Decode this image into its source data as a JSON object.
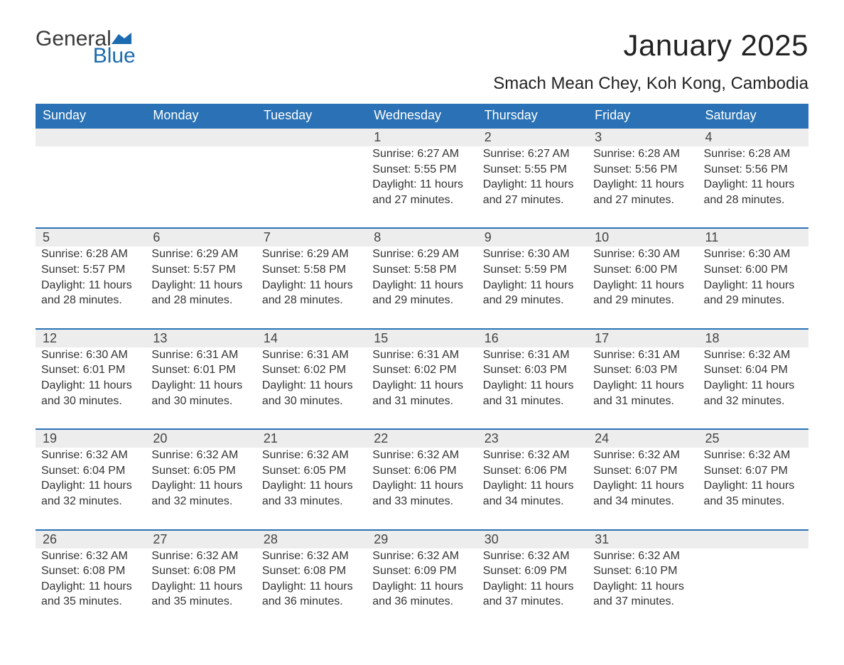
{
  "logo": {
    "word1": "General",
    "word2": "Blue",
    "flag_color": "#1c6bb0"
  },
  "title": "January 2025",
  "location": "Smach Mean Chey, Koh Kong, Cambodia",
  "colors": {
    "header_bg": "#2a72b5",
    "header_text": "#ffffff",
    "daynum_bg": "#ededed",
    "border_top": "#2a72b5",
    "body_text": "#333333",
    "page_bg": "#ffffff"
  },
  "fonts": {
    "title_size_pt": 32,
    "location_size_pt": 18,
    "header_size_pt": 14,
    "body_size_pt": 12
  },
  "day_headers": [
    "Sunday",
    "Monday",
    "Tuesday",
    "Wednesday",
    "Thursday",
    "Friday",
    "Saturday"
  ],
  "weeks": [
    [
      null,
      null,
      null,
      {
        "n": "1",
        "sunrise": "Sunrise: 6:27 AM",
        "sunset": "Sunset: 5:55 PM",
        "daylight": "Daylight: 11 hours and 27 minutes."
      },
      {
        "n": "2",
        "sunrise": "Sunrise: 6:27 AM",
        "sunset": "Sunset: 5:55 PM",
        "daylight": "Daylight: 11 hours and 27 minutes."
      },
      {
        "n": "3",
        "sunrise": "Sunrise: 6:28 AM",
        "sunset": "Sunset: 5:56 PM",
        "daylight": "Daylight: 11 hours and 27 minutes."
      },
      {
        "n": "4",
        "sunrise": "Sunrise: 6:28 AM",
        "sunset": "Sunset: 5:56 PM",
        "daylight": "Daylight: 11 hours and 28 minutes."
      }
    ],
    [
      {
        "n": "5",
        "sunrise": "Sunrise: 6:28 AM",
        "sunset": "Sunset: 5:57 PM",
        "daylight": "Daylight: 11 hours and 28 minutes."
      },
      {
        "n": "6",
        "sunrise": "Sunrise: 6:29 AM",
        "sunset": "Sunset: 5:57 PM",
        "daylight": "Daylight: 11 hours and 28 minutes."
      },
      {
        "n": "7",
        "sunrise": "Sunrise: 6:29 AM",
        "sunset": "Sunset: 5:58 PM",
        "daylight": "Daylight: 11 hours and 28 minutes."
      },
      {
        "n": "8",
        "sunrise": "Sunrise: 6:29 AM",
        "sunset": "Sunset: 5:58 PM",
        "daylight": "Daylight: 11 hours and 29 minutes."
      },
      {
        "n": "9",
        "sunrise": "Sunrise: 6:30 AM",
        "sunset": "Sunset: 5:59 PM",
        "daylight": "Daylight: 11 hours and 29 minutes."
      },
      {
        "n": "10",
        "sunrise": "Sunrise: 6:30 AM",
        "sunset": "Sunset: 6:00 PM",
        "daylight": "Daylight: 11 hours and 29 minutes."
      },
      {
        "n": "11",
        "sunrise": "Sunrise: 6:30 AM",
        "sunset": "Sunset: 6:00 PM",
        "daylight": "Daylight: 11 hours and 29 minutes."
      }
    ],
    [
      {
        "n": "12",
        "sunrise": "Sunrise: 6:30 AM",
        "sunset": "Sunset: 6:01 PM",
        "daylight": "Daylight: 11 hours and 30 minutes."
      },
      {
        "n": "13",
        "sunrise": "Sunrise: 6:31 AM",
        "sunset": "Sunset: 6:01 PM",
        "daylight": "Daylight: 11 hours and 30 minutes."
      },
      {
        "n": "14",
        "sunrise": "Sunrise: 6:31 AM",
        "sunset": "Sunset: 6:02 PM",
        "daylight": "Daylight: 11 hours and 30 minutes."
      },
      {
        "n": "15",
        "sunrise": "Sunrise: 6:31 AM",
        "sunset": "Sunset: 6:02 PM",
        "daylight": "Daylight: 11 hours and 31 minutes."
      },
      {
        "n": "16",
        "sunrise": "Sunrise: 6:31 AM",
        "sunset": "Sunset: 6:03 PM",
        "daylight": "Daylight: 11 hours and 31 minutes."
      },
      {
        "n": "17",
        "sunrise": "Sunrise: 6:31 AM",
        "sunset": "Sunset: 6:03 PM",
        "daylight": "Daylight: 11 hours and 31 minutes."
      },
      {
        "n": "18",
        "sunrise": "Sunrise: 6:32 AM",
        "sunset": "Sunset: 6:04 PM",
        "daylight": "Daylight: 11 hours and 32 minutes."
      }
    ],
    [
      {
        "n": "19",
        "sunrise": "Sunrise: 6:32 AM",
        "sunset": "Sunset: 6:04 PM",
        "daylight": "Daylight: 11 hours and 32 minutes."
      },
      {
        "n": "20",
        "sunrise": "Sunrise: 6:32 AM",
        "sunset": "Sunset: 6:05 PM",
        "daylight": "Daylight: 11 hours and 32 minutes."
      },
      {
        "n": "21",
        "sunrise": "Sunrise: 6:32 AM",
        "sunset": "Sunset: 6:05 PM",
        "daylight": "Daylight: 11 hours and 33 minutes."
      },
      {
        "n": "22",
        "sunrise": "Sunrise: 6:32 AM",
        "sunset": "Sunset: 6:06 PM",
        "daylight": "Daylight: 11 hours and 33 minutes."
      },
      {
        "n": "23",
        "sunrise": "Sunrise: 6:32 AM",
        "sunset": "Sunset: 6:06 PM",
        "daylight": "Daylight: 11 hours and 34 minutes."
      },
      {
        "n": "24",
        "sunrise": "Sunrise: 6:32 AM",
        "sunset": "Sunset: 6:07 PM",
        "daylight": "Daylight: 11 hours and 34 minutes."
      },
      {
        "n": "25",
        "sunrise": "Sunrise: 6:32 AM",
        "sunset": "Sunset: 6:07 PM",
        "daylight": "Daylight: 11 hours and 35 minutes."
      }
    ],
    [
      {
        "n": "26",
        "sunrise": "Sunrise: 6:32 AM",
        "sunset": "Sunset: 6:08 PM",
        "daylight": "Daylight: 11 hours and 35 minutes."
      },
      {
        "n": "27",
        "sunrise": "Sunrise: 6:32 AM",
        "sunset": "Sunset: 6:08 PM",
        "daylight": "Daylight: 11 hours and 35 minutes."
      },
      {
        "n": "28",
        "sunrise": "Sunrise: 6:32 AM",
        "sunset": "Sunset: 6:08 PM",
        "daylight": "Daylight: 11 hours and 36 minutes."
      },
      {
        "n": "29",
        "sunrise": "Sunrise: 6:32 AM",
        "sunset": "Sunset: 6:09 PM",
        "daylight": "Daylight: 11 hours and 36 minutes."
      },
      {
        "n": "30",
        "sunrise": "Sunrise: 6:32 AM",
        "sunset": "Sunset: 6:09 PM",
        "daylight": "Daylight: 11 hours and 37 minutes."
      },
      {
        "n": "31",
        "sunrise": "Sunrise: 6:32 AM",
        "sunset": "Sunset: 6:10 PM",
        "daylight": "Daylight: 11 hours and 37 minutes."
      },
      null
    ]
  ]
}
